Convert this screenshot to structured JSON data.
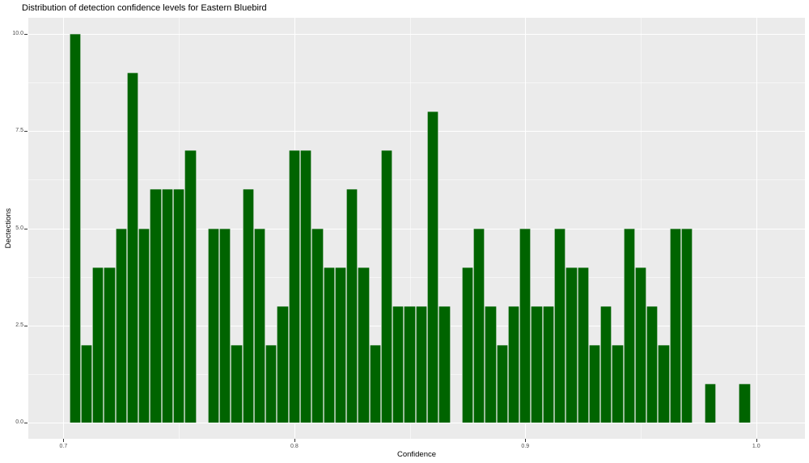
{
  "chart_data": {
    "type": "bar",
    "subtype": "histogram",
    "title": "Distribution of detection confidence levels for Eastern Bluebird",
    "xlabel": "Confidence",
    "ylabel": "Dectections",
    "bin_width": 0.005,
    "bin_centers": [
      0.705,
      0.71,
      0.715,
      0.72,
      0.725,
      0.73,
      0.735,
      0.74,
      0.745,
      0.75,
      0.755,
      0.76,
      0.765,
      0.77,
      0.775,
      0.78,
      0.785,
      0.79,
      0.795,
      0.8,
      0.805,
      0.81,
      0.815,
      0.82,
      0.825,
      0.83,
      0.835,
      0.84,
      0.845,
      0.85,
      0.855,
      0.86,
      0.865,
      0.87,
      0.875,
      0.88,
      0.885,
      0.89,
      0.895,
      0.9,
      0.905,
      0.91,
      0.915,
      0.92,
      0.925,
      0.93,
      0.935,
      0.94,
      0.945,
      0.95,
      0.955,
      0.96,
      0.965,
      0.97,
      0.975,
      0.98,
      0.985,
      0.99,
      0.995
    ],
    "counts": [
      10,
      2,
      4,
      4,
      5,
      9,
      5,
      6,
      6,
      6,
      7,
      0,
      5,
      5,
      2,
      6,
      5,
      2,
      3,
      7,
      7,
      5,
      4,
      4,
      6,
      4,
      2,
      7,
      3,
      3,
      3,
      8,
      3,
      0,
      4,
      5,
      3,
      2,
      3,
      5,
      3,
      3,
      5,
      4,
      4,
      2,
      3,
      2,
      5,
      4,
      3,
      2,
      5,
      5,
      0,
      1,
      0,
      0,
      1
    ],
    "x_ticks": [
      {
        "value": 0.7,
        "label": "0.7"
      },
      {
        "value": 0.8,
        "label": "0.8"
      },
      {
        "value": 0.9,
        "label": "0.9"
      },
      {
        "value": 1.0,
        "label": "1.0"
      }
    ],
    "y_ticks": [
      {
        "value": 0.0,
        "label": "0.0"
      },
      {
        "value": 2.5,
        "label": "2.5"
      },
      {
        "value": 5.0,
        "label": "5.0"
      },
      {
        "value": 7.5,
        "label": "7.5"
      },
      {
        "value": 10.0,
        "label": "10.0"
      }
    ],
    "x_minor_gridlines": [
      0.75,
      0.85,
      0.95
    ],
    "y_minor_gridlines": [
      1.25,
      3.75,
      6.25,
      8.75
    ],
    "x_domain": [
      0.6848,
      1.0211
    ],
    "y_domain": [
      -0.42,
      10.42
    ],
    "grid": "on",
    "legend": "none",
    "colors": {
      "bar_fill": "#006400",
      "panel_background": "#EBEBEB",
      "grid_major": "#FFFFFF",
      "grid_minor": "#FFFFFF",
      "tick_text": "#4D4D4D",
      "axis_title_text": "#000000",
      "title_text": "#000000",
      "figure_background": "#FFFFFF"
    }
  }
}
